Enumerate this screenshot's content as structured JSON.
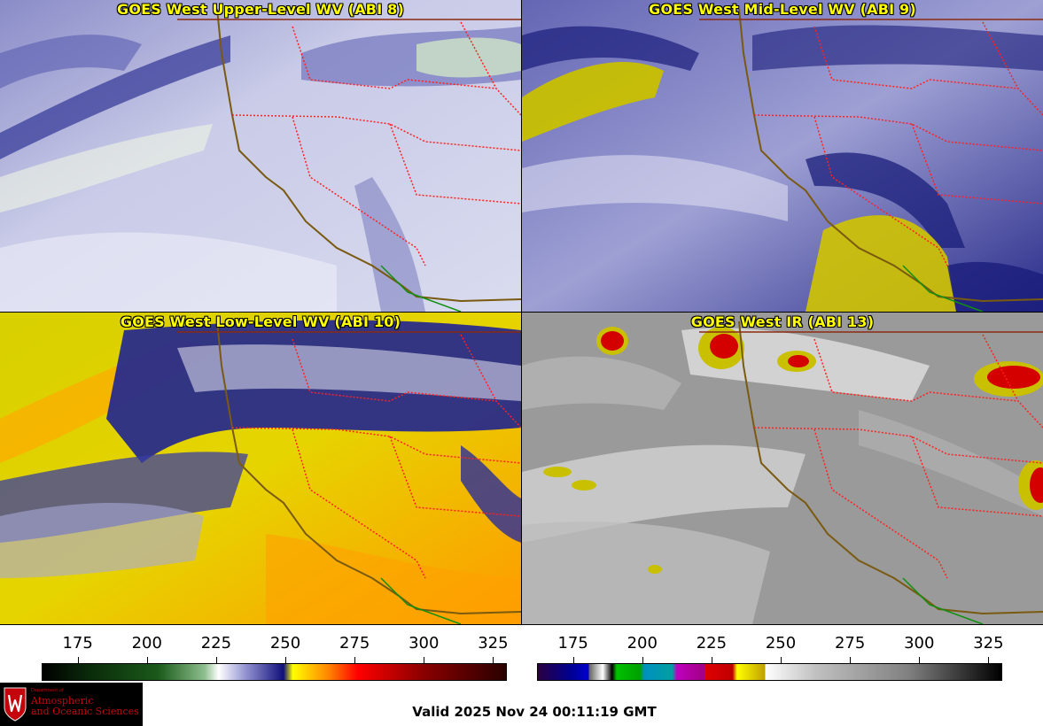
{
  "panels": [
    {
      "id": "tl",
      "title": "GOES West Upper-Level WV (ABI 8)",
      "scheme": "wv-upper"
    },
    {
      "id": "tr",
      "title": "GOES West Mid-Level WV (ABI 9)",
      "scheme": "wv-mid"
    },
    {
      "id": "bl",
      "title": "GOES West Low-Level WV (ABI 10)",
      "scheme": "wv-low"
    },
    {
      "id": "br",
      "title": "GOES West IR (ABI 13)",
      "scheme": "ir"
    }
  ],
  "colorbars": {
    "left": {
      "ticks": [
        "175",
        "200",
        "225",
        "250",
        "275",
        "300",
        "325"
      ],
      "range": [
        162,
        330
      ],
      "tick_values": [
        175,
        200,
        225,
        250,
        275,
        300,
        325
      ]
    },
    "right": {
      "ticks": [
        "175",
        "200",
        "225",
        "250",
        "275",
        "300",
        "325"
      ],
      "range": [
        162,
        330
      ],
      "tick_values": [
        175,
        200,
        225,
        250,
        275,
        300,
        325
      ]
    }
  },
  "logo": {
    "dept": "Department of",
    "name_line1": "Atmospheric",
    "name_line2": "and Oceanic Sciences"
  },
  "valid_time": "Valid 2025 Nov 24 00:11:19 GMT",
  "colors": {
    "title_text": "#ffff00",
    "coast": "#7a5a10",
    "state_border": "#ff2020",
    "country_border": "#8b2a10",
    "mexico_coast": "#109010"
  }
}
